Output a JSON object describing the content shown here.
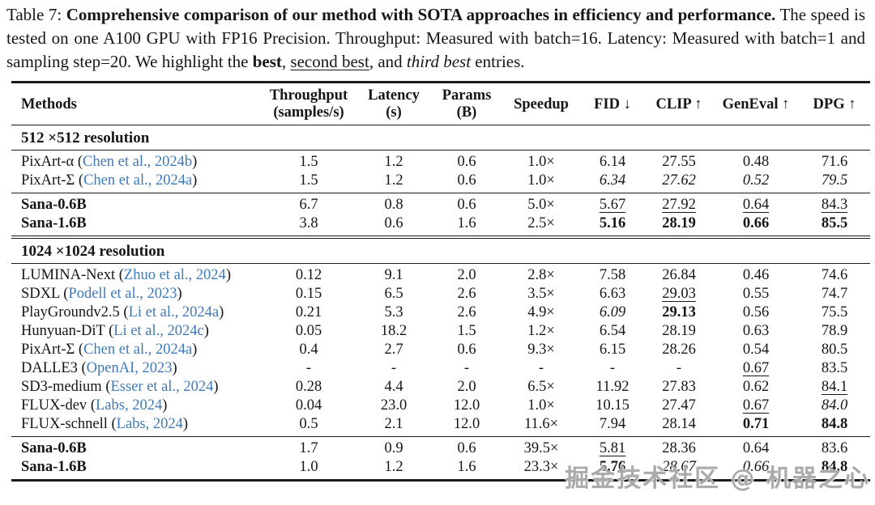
{
  "caption": {
    "label": "Table 7: ",
    "bold": "Comprehensive comparison of our method with SOTA approaches in efficiency and performance.",
    "body": " The speed is tested on one A100 GPU with FP16 Precision. Throughput: Measured with batch=16. Latency: Measured with batch=1 and sampling step=20. We highlight the ",
    "best": "best",
    "sep1": ", ",
    "second": "second best",
    "sep2": ", and ",
    "third": "third best",
    "tail": " entries."
  },
  "watermark": "掘金技术社区 @ 机器之心",
  "colors": {
    "citation_link": "#3f7ab8",
    "text": "#161616",
    "rule": "#1b1b1b",
    "watermark": "#949494"
  },
  "table": {
    "columns": [
      {
        "label": "Methods",
        "sub": ""
      },
      {
        "label": "Throughput",
        "sub": "(samples/s)"
      },
      {
        "label": "Latency",
        "sub": "(s)"
      },
      {
        "label": "Params",
        "sub": "(B)"
      },
      {
        "label": "Speedup",
        "sub": ""
      },
      {
        "label": "FID ↓",
        "sub": ""
      },
      {
        "label": "CLIP ↑",
        "sub": ""
      },
      {
        "label": "GenEval ↑",
        "sub": ""
      },
      {
        "label": "DPG ↑",
        "sub": ""
      }
    ],
    "sections": [
      {
        "title": "512 ×512 resolution",
        "groups": [
          {
            "rule": "single",
            "rows": [
              {
                "name": "PixArt-α",
                "cite": "Chen et al., 2024b",
                "bold": false,
                "cells": [
                  [
                    "1.5",
                    ""
                  ],
                  [
                    "1.2",
                    ""
                  ],
                  [
                    "0.6",
                    ""
                  ],
                  [
                    "1.0×",
                    ""
                  ],
                  [
                    "6.14",
                    ""
                  ],
                  [
                    "27.55",
                    ""
                  ],
                  [
                    "0.48",
                    ""
                  ],
                  [
                    "71.6",
                    ""
                  ]
                ]
              },
              {
                "name": "PixArt-Σ",
                "cite": "Chen et al., 2024a",
                "bold": false,
                "cells": [
                  [
                    "1.5",
                    ""
                  ],
                  [
                    "1.2",
                    ""
                  ],
                  [
                    "0.6",
                    ""
                  ],
                  [
                    "1.0×",
                    ""
                  ],
                  [
                    "6.34",
                    "i"
                  ],
                  [
                    "27.62",
                    "i"
                  ],
                  [
                    "0.52",
                    "i"
                  ],
                  [
                    "79.5",
                    "i"
                  ]
                ]
              }
            ]
          },
          {
            "rule": "double",
            "rows": [
              {
                "name": "Sana-0.6B",
                "cite": "",
                "bold": true,
                "cells": [
                  [
                    "6.7",
                    ""
                  ],
                  [
                    "0.8",
                    ""
                  ],
                  [
                    "0.6",
                    ""
                  ],
                  [
                    "5.0×",
                    ""
                  ],
                  [
                    "5.67",
                    "u"
                  ],
                  [
                    "27.92",
                    "u"
                  ],
                  [
                    "0.64",
                    "u"
                  ],
                  [
                    "84.3",
                    "u"
                  ]
                ]
              },
              {
                "name": "Sana-1.6B",
                "cite": "",
                "bold": true,
                "cells": [
                  [
                    "3.8",
                    ""
                  ],
                  [
                    "0.6",
                    ""
                  ],
                  [
                    "1.6",
                    ""
                  ],
                  [
                    "2.5×",
                    ""
                  ],
                  [
                    "5.16",
                    "b"
                  ],
                  [
                    "28.19",
                    "b"
                  ],
                  [
                    "0.66",
                    "b"
                  ],
                  [
                    "85.5",
                    "b"
                  ]
                ]
              }
            ]
          }
        ]
      },
      {
        "title": "1024 ×1024 resolution",
        "groups": [
          {
            "rule": "single",
            "rows": [
              {
                "name": "LUMINA-Next",
                "cite": "Zhuo et al., 2024",
                "bold": false,
                "cells": [
                  [
                    "0.12",
                    ""
                  ],
                  [
                    "9.1",
                    ""
                  ],
                  [
                    "2.0",
                    ""
                  ],
                  [
                    "2.8×",
                    ""
                  ],
                  [
                    "7.58",
                    ""
                  ],
                  [
                    "26.84",
                    ""
                  ],
                  [
                    "0.46",
                    ""
                  ],
                  [
                    "74.6",
                    ""
                  ]
                ]
              },
              {
                "name": "SDXL",
                "cite": "Podell et al., 2023",
                "bold": false,
                "cells": [
                  [
                    "0.15",
                    ""
                  ],
                  [
                    "6.5",
                    ""
                  ],
                  [
                    "2.6",
                    ""
                  ],
                  [
                    "3.5×",
                    ""
                  ],
                  [
                    "6.63",
                    ""
                  ],
                  [
                    "29.03",
                    "u"
                  ],
                  [
                    "0.55",
                    ""
                  ],
                  [
                    "74.7",
                    ""
                  ]
                ]
              },
              {
                "name": "PlayGroundv2.5",
                "cite": "Li et al., 2024a",
                "bold": false,
                "cells": [
                  [
                    "0.21",
                    ""
                  ],
                  [
                    "5.3",
                    ""
                  ],
                  [
                    "2.6",
                    ""
                  ],
                  [
                    "4.9×",
                    ""
                  ],
                  [
                    "6.09",
                    "i"
                  ],
                  [
                    "29.13",
                    "b"
                  ],
                  [
                    "0.56",
                    ""
                  ],
                  [
                    "75.5",
                    ""
                  ]
                ]
              },
              {
                "name": "Hunyuan-DiT",
                "cite": "Li et al., 2024c",
                "bold": false,
                "cells": [
                  [
                    "0.05",
                    ""
                  ],
                  [
                    "18.2",
                    ""
                  ],
                  [
                    "1.5",
                    ""
                  ],
                  [
                    "1.2×",
                    ""
                  ],
                  [
                    "6.54",
                    ""
                  ],
                  [
                    "28.19",
                    ""
                  ],
                  [
                    "0.63",
                    ""
                  ],
                  [
                    "78.9",
                    ""
                  ]
                ]
              },
              {
                "name": "PixArt-Σ",
                "cite": "Chen et al., 2024a",
                "bold": false,
                "cells": [
                  [
                    "0.4",
                    ""
                  ],
                  [
                    "2.7",
                    ""
                  ],
                  [
                    "0.6",
                    ""
                  ],
                  [
                    "9.3×",
                    ""
                  ],
                  [
                    "6.15",
                    ""
                  ],
                  [
                    "28.26",
                    ""
                  ],
                  [
                    "0.54",
                    ""
                  ],
                  [
                    "80.5",
                    ""
                  ]
                ]
              },
              {
                "name": "DALLE3",
                "cite": "OpenAI, 2023",
                "bold": false,
                "cells": [
                  [
                    "-",
                    ""
                  ],
                  [
                    "-",
                    ""
                  ],
                  [
                    "-",
                    ""
                  ],
                  [
                    "-",
                    ""
                  ],
                  [
                    "-",
                    ""
                  ],
                  [
                    "-",
                    ""
                  ],
                  [
                    "0.67",
                    "u"
                  ],
                  [
                    "83.5",
                    ""
                  ]
                ]
              },
              {
                "name": "SD3-medium",
                "cite": "Esser et al., 2024",
                "bold": false,
                "cells": [
                  [
                    "0.28",
                    ""
                  ],
                  [
                    "4.4",
                    ""
                  ],
                  [
                    "2.0",
                    ""
                  ],
                  [
                    "6.5×",
                    ""
                  ],
                  [
                    "11.92",
                    ""
                  ],
                  [
                    "27.83",
                    ""
                  ],
                  [
                    "0.62",
                    ""
                  ],
                  [
                    "84.1",
                    "u"
                  ]
                ]
              },
              {
                "name": "FLUX-dev",
                "cite": "Labs, 2024",
                "bold": false,
                "cells": [
                  [
                    "0.04",
                    ""
                  ],
                  [
                    "23.0",
                    ""
                  ],
                  [
                    "12.0",
                    ""
                  ],
                  [
                    "1.0×",
                    ""
                  ],
                  [
                    "10.15",
                    ""
                  ],
                  [
                    "27.47",
                    ""
                  ],
                  [
                    "0.67",
                    "u"
                  ],
                  [
                    "84.0",
                    "i"
                  ]
                ]
              },
              {
                "name": "FLUX-schnell",
                "cite": "Labs, 2024",
                "bold": false,
                "cells": [
                  [
                    "0.5",
                    ""
                  ],
                  [
                    "2.1",
                    ""
                  ],
                  [
                    "12.0",
                    ""
                  ],
                  [
                    "11.6×",
                    ""
                  ],
                  [
                    "7.94",
                    ""
                  ],
                  [
                    "28.14",
                    ""
                  ],
                  [
                    "0.71",
                    "b"
                  ],
                  [
                    "84.8",
                    "b"
                  ]
                ]
              }
            ]
          },
          {
            "rule": "end",
            "rows": [
              {
                "name": "Sana-0.6B",
                "cite": "",
                "bold": true,
                "cells": [
                  [
                    "1.7",
                    ""
                  ],
                  [
                    "0.9",
                    ""
                  ],
                  [
                    "0.6",
                    ""
                  ],
                  [
                    "39.5×",
                    ""
                  ],
                  [
                    "5.81",
                    "u"
                  ],
                  [
                    "28.36",
                    ""
                  ],
                  [
                    "0.64",
                    ""
                  ],
                  [
                    "83.6",
                    ""
                  ]
                ]
              },
              {
                "name": "Sana-1.6B",
                "cite": "",
                "bold": true,
                "cells": [
                  [
                    "1.0",
                    ""
                  ],
                  [
                    "1.2",
                    ""
                  ],
                  [
                    "1.6",
                    ""
                  ],
                  [
                    "23.3×",
                    ""
                  ],
                  [
                    "5.76",
                    "b"
                  ],
                  [
                    "28.67",
                    "i"
                  ],
                  [
                    "0.66",
                    "i"
                  ],
                  [
                    "84.8",
                    "b"
                  ]
                ]
              }
            ]
          }
        ]
      }
    ]
  }
}
